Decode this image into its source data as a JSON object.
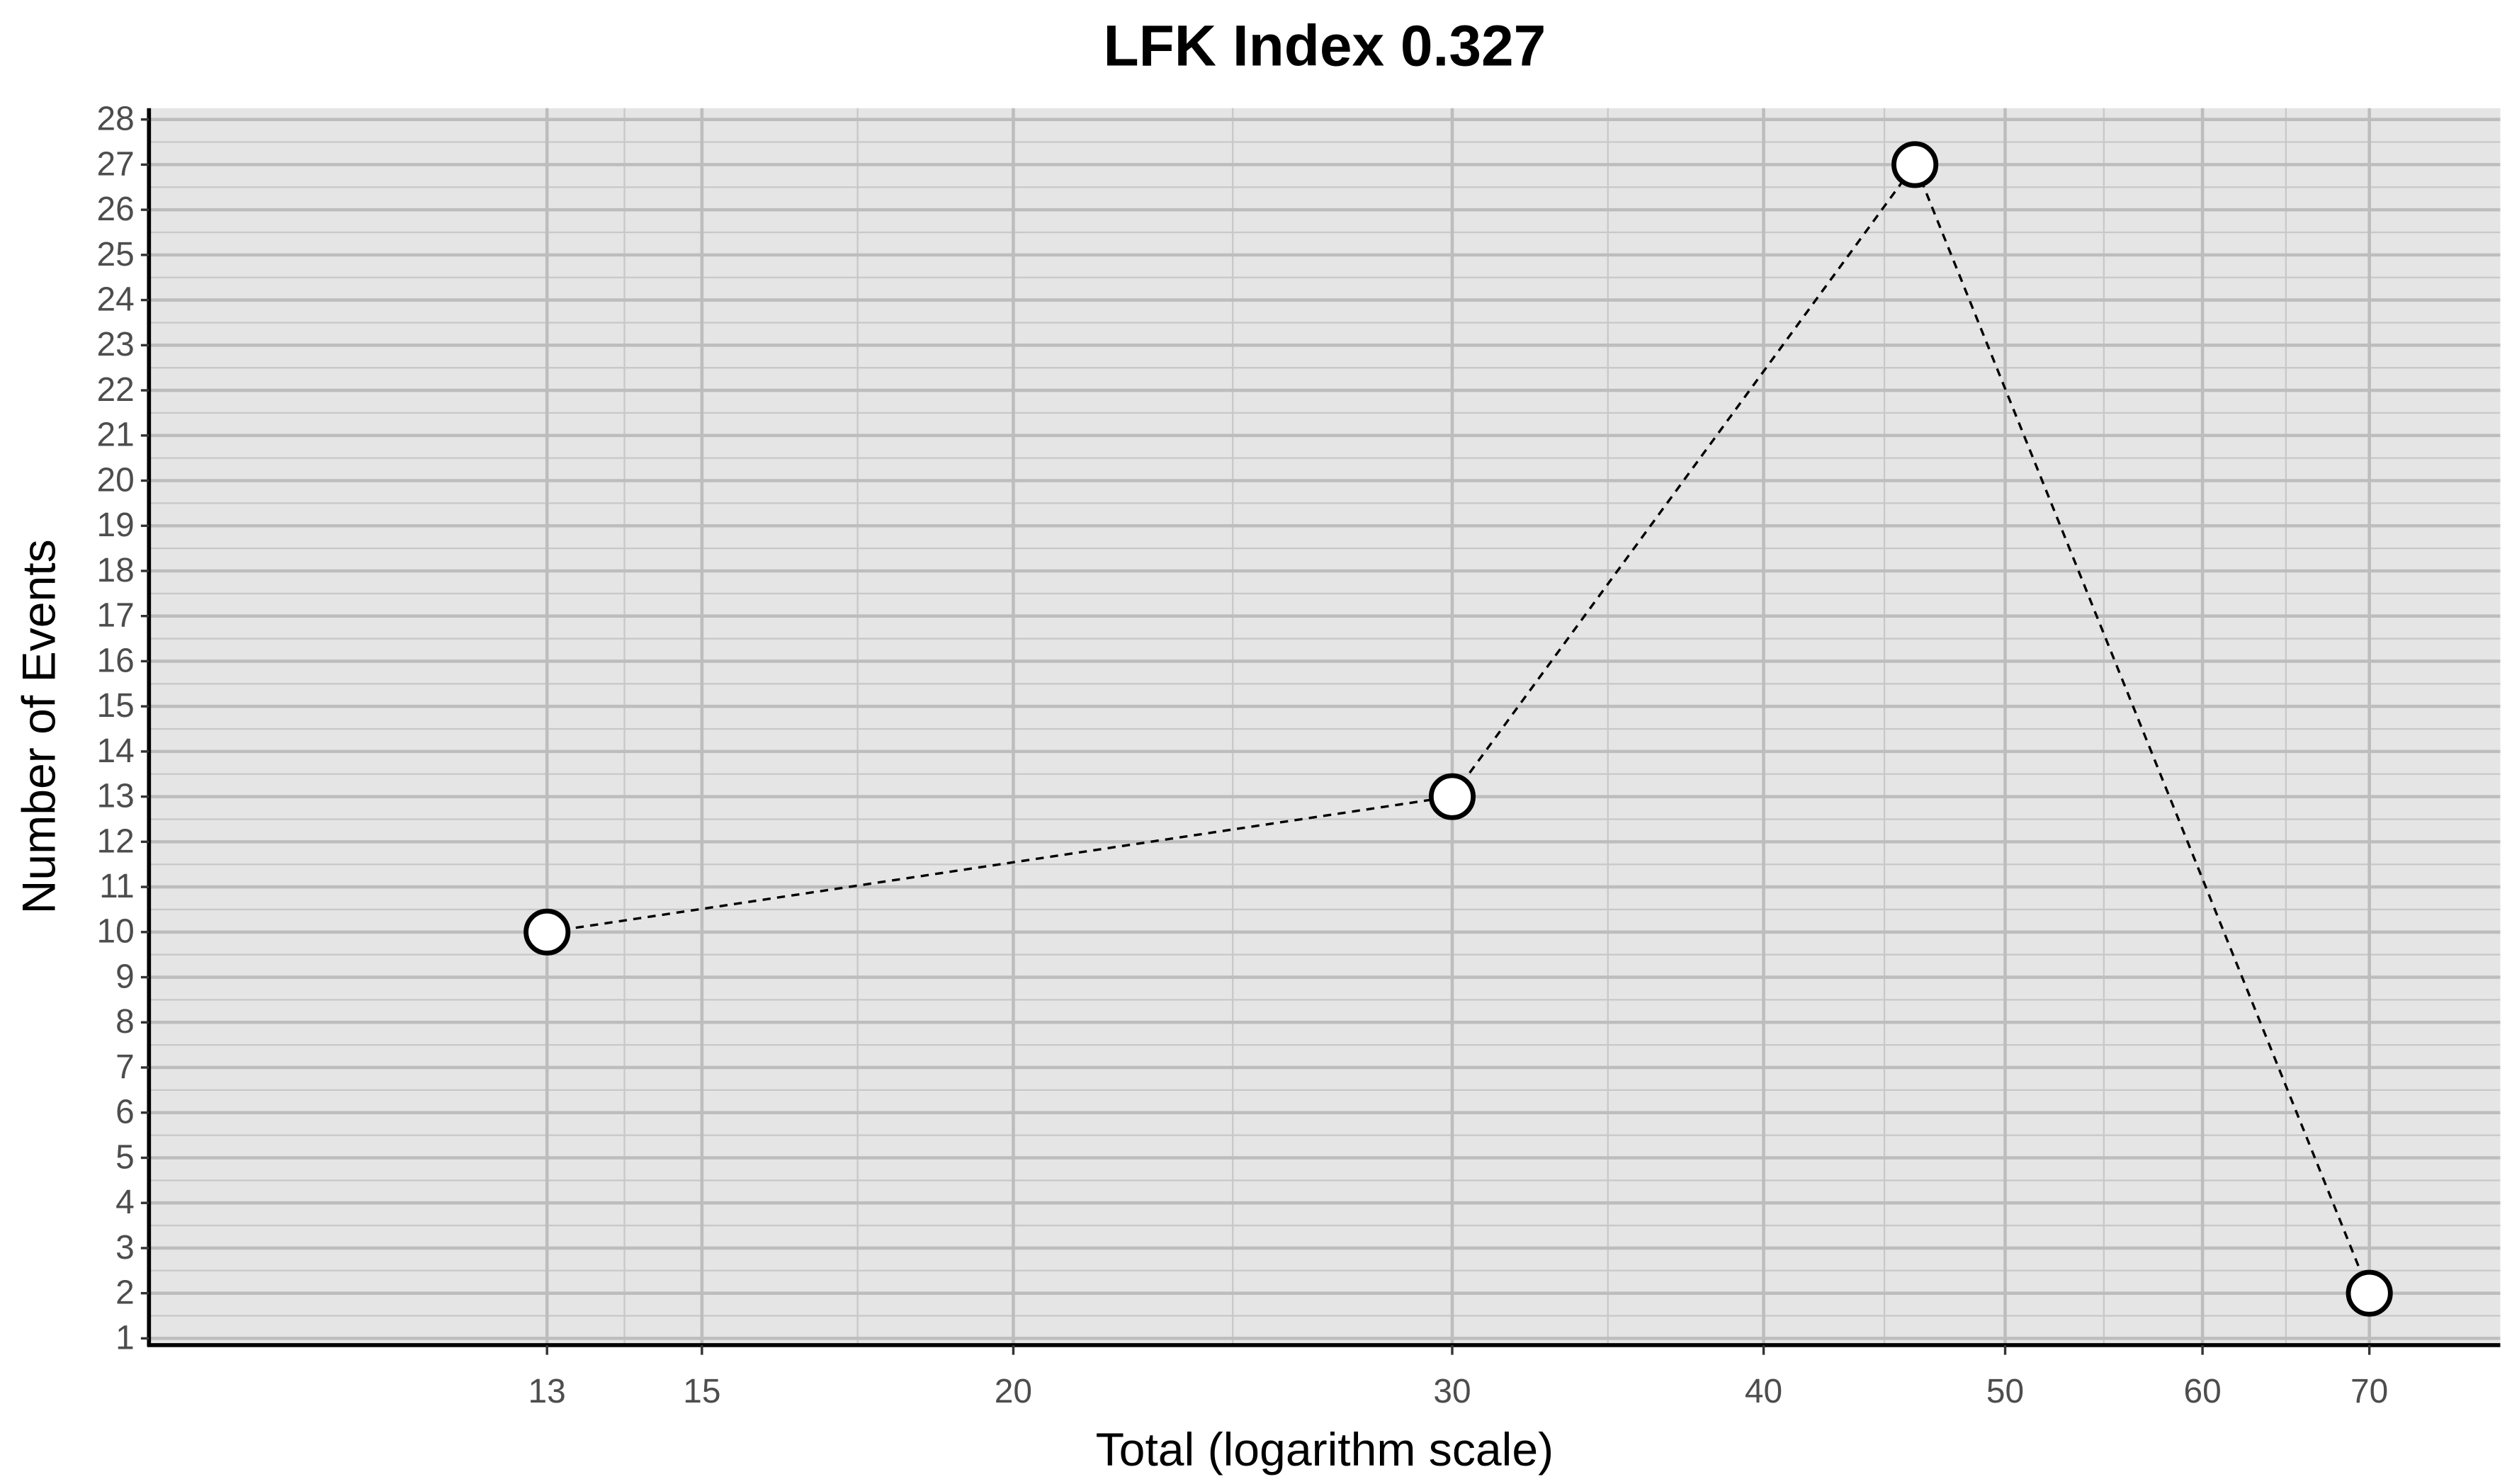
{
  "chart_data": {
    "type": "line",
    "title": "LFK Index 0.327",
    "x_label": "Total (logarithm scale)",
    "y_label": "Number of Events",
    "x": [
      13,
      30,
      46,
      70
    ],
    "series": [
      {
        "values": [
          10,
          13,
          27,
          2
        ],
        "color": "#000000"
      }
    ],
    "xlim": [
      9,
      79
    ],
    "xticks": [
      13,
      15,
      20,
      30,
      40,
      50,
      60,
      70
    ],
    "x_log": true,
    "ylim": [
      0.85,
      28.25
    ],
    "yticks": [
      1,
      2,
      3,
      4,
      5,
      6,
      7,
      8,
      9,
      10,
      11,
      12,
      13,
      14,
      15,
      16,
      17,
      18,
      19,
      20,
      21,
      22,
      23,
      24,
      25,
      26,
      27,
      28
    ],
    "grid": true
  }
}
